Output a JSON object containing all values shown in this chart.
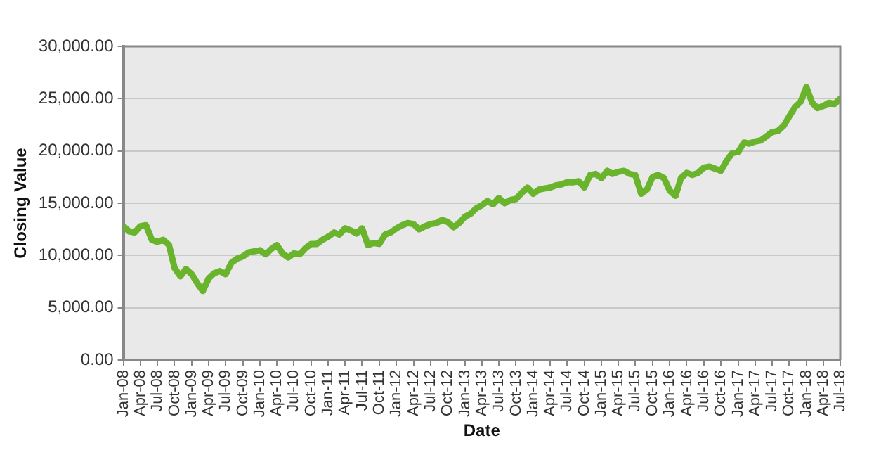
{
  "chart_data": {
    "type": "line",
    "xlabel": "Date",
    "ylabel": "Closing Value",
    "x": [
      "2008-01",
      "2008-02",
      "2008-03",
      "2008-04",
      "2008-05",
      "2008-06",
      "2008-07",
      "2008-08",
      "2008-09",
      "2008-10",
      "2008-11",
      "2008-12",
      "2009-01",
      "2009-02",
      "2009-03",
      "2009-04",
      "2009-05",
      "2009-06",
      "2009-07",
      "2009-08",
      "2009-09",
      "2009-10",
      "2009-11",
      "2009-12",
      "2010-01",
      "2010-02",
      "2010-03",
      "2010-04",
      "2010-05",
      "2010-06",
      "2010-07",
      "2010-08",
      "2010-09",
      "2010-10",
      "2010-11",
      "2010-12",
      "2011-01",
      "2011-02",
      "2011-03",
      "2011-04",
      "2011-05",
      "2011-06",
      "2011-07",
      "2011-08",
      "2011-09",
      "2011-10",
      "2011-11",
      "2011-12",
      "2012-01",
      "2012-02",
      "2012-03",
      "2012-04",
      "2012-05",
      "2012-06",
      "2012-07",
      "2012-08",
      "2012-09",
      "2012-10",
      "2012-11",
      "2012-12",
      "2013-01",
      "2013-02",
      "2013-03",
      "2013-04",
      "2013-05",
      "2013-06",
      "2013-07",
      "2013-08",
      "2013-09",
      "2013-10",
      "2013-11",
      "2013-12",
      "2014-01",
      "2014-02",
      "2014-03",
      "2014-04",
      "2014-05",
      "2014-06",
      "2014-07",
      "2014-08",
      "2014-09",
      "2014-10",
      "2014-11",
      "2014-12",
      "2015-01",
      "2015-02",
      "2015-03",
      "2015-04",
      "2015-05",
      "2015-06",
      "2015-07",
      "2015-08",
      "2015-09",
      "2015-10",
      "2015-11",
      "2015-12",
      "2016-01",
      "2016-02",
      "2016-03",
      "2016-04",
      "2016-05",
      "2016-06",
      "2016-07",
      "2016-08",
      "2016-09",
      "2016-10",
      "2016-11",
      "2016-12",
      "2017-01",
      "2017-02",
      "2017-03",
      "2017-04",
      "2017-05",
      "2017-06",
      "2017-07",
      "2017-08",
      "2017-09",
      "2017-10",
      "2017-11",
      "2017-12",
      "2018-01",
      "2018-02",
      "2018-03",
      "2018-04",
      "2018-05",
      "2018-06",
      "2018-07"
    ],
    "series": [
      {
        "color": "#6ab42d",
        "values": [
          12800,
          12300,
          12200,
          12800,
          12900,
          11500,
          11300,
          11500,
          11000,
          8800,
          8000,
          8700,
          8200,
          7300,
          6600,
          7800,
          8300,
          8500,
          8200,
          9300,
          9700,
          9900,
          10300,
          10400,
          10500,
          10100,
          10600,
          11000,
          10200,
          9800,
          10200,
          10100,
          10700,
          11100,
          11100,
          11500,
          11800,
          12200,
          12000,
          12600,
          12400,
          12100,
          12600,
          11000,
          11200,
          11100,
          12000,
          12200,
          12600,
          12900,
          13100,
          13000,
          12500,
          12800,
          13000,
          13100,
          13400,
          13200,
          12700,
          13100,
          13700,
          14000,
          14500,
          14800,
          15200,
          14900,
          15500,
          15000,
          15300,
          15400,
          16000,
          16500,
          15900,
          16300,
          16400,
          16500,
          16700,
          16800,
          17000,
          17000,
          17100,
          16500,
          17700,
          17800,
          17400,
          18100,
          17800,
          18000,
          18100,
          17800,
          17700,
          15900,
          16300,
          17500,
          17700,
          17400,
          16200,
          15700,
          17400,
          17900,
          17700,
          17900,
          18400,
          18500,
          18300,
          18100,
          19100,
          19800,
          19900,
          20800,
          20700,
          20900,
          21000,
          21400,
          21800,
          21900,
          22400,
          23300,
          24200,
          24700,
          26100,
          24600,
          24100,
          24300,
          24600,
          24500,
          25000
        ]
      }
    ],
    "xlim": [
      "2008-01",
      "2018-07"
    ],
    "xticks": [
      {
        "value": "2008-01",
        "label": "Jan-08"
      },
      {
        "value": "2008-04",
        "label": "Apr-08"
      },
      {
        "value": "2008-07",
        "label": "Jul-08"
      },
      {
        "value": "2008-10",
        "label": "Oct-08"
      },
      {
        "value": "2009-01",
        "label": "Jan-09"
      },
      {
        "value": "2009-04",
        "label": "Apr-09"
      },
      {
        "value": "2009-07",
        "label": "Jul-09"
      },
      {
        "value": "2009-10",
        "label": "Oct-09"
      },
      {
        "value": "2010-01",
        "label": "Jan-10"
      },
      {
        "value": "2010-04",
        "label": "Apr-10"
      },
      {
        "value": "2010-07",
        "label": "Jul-10"
      },
      {
        "value": "2010-10",
        "label": "Oct-10"
      },
      {
        "value": "2011-01",
        "label": "Jan-11"
      },
      {
        "value": "2011-04",
        "label": "Apr-11"
      },
      {
        "value": "2011-07",
        "label": "Jul-11"
      },
      {
        "value": "2011-10",
        "label": "Oct-11"
      },
      {
        "value": "2012-01",
        "label": "Jan-12"
      },
      {
        "value": "2012-04",
        "label": "Apr-12"
      },
      {
        "value": "2012-07",
        "label": "Jul-12"
      },
      {
        "value": "2012-10",
        "label": "Oct-12"
      },
      {
        "value": "2013-01",
        "label": "Jan-13"
      },
      {
        "value": "2013-04",
        "label": "Apr-13"
      },
      {
        "value": "2013-07",
        "label": "Jul-13"
      },
      {
        "value": "2013-10",
        "label": "Oct-13"
      },
      {
        "value": "2014-01",
        "label": "Jan-14"
      },
      {
        "value": "2014-04",
        "label": "Apr-14"
      },
      {
        "value": "2014-07",
        "label": "Jul-14"
      },
      {
        "value": "2014-10",
        "label": "Oct-14"
      },
      {
        "value": "2015-01",
        "label": "Jan-15"
      },
      {
        "value": "2015-04",
        "label": "Apr-15"
      },
      {
        "value": "2015-07",
        "label": "Jul-15"
      },
      {
        "value": "2015-10",
        "label": "Oct-15"
      },
      {
        "value": "2016-01",
        "label": "Jan-16"
      },
      {
        "value": "2016-04",
        "label": "Apr-16"
      },
      {
        "value": "2016-07",
        "label": "Jul-16"
      },
      {
        "value": "2016-10",
        "label": "Oct-16"
      },
      {
        "value": "2017-01",
        "label": "Jan-17"
      },
      {
        "value": "2017-04",
        "label": "Apr-17"
      },
      {
        "value": "2017-07",
        "label": "Jul-17"
      },
      {
        "value": "2017-10",
        "label": "Oct-17"
      },
      {
        "value": "2018-01",
        "label": "Jan-18"
      },
      {
        "value": "2018-04",
        "label": "Apr-18"
      },
      {
        "value": "2018-07",
        "label": "Jul-18"
      }
    ],
    "ylim": [
      0,
      30000
    ],
    "yticks": [
      {
        "value": 0,
        "label": "0.00"
      },
      {
        "value": 5000,
        "label": "5,000.00"
      },
      {
        "value": 10000,
        "label": "10,000.00"
      },
      {
        "value": 15000,
        "label": "15,000.00"
      },
      {
        "value": 20000,
        "label": "20,000.00"
      },
      {
        "value": 25000,
        "label": "25,000.00"
      },
      {
        "value": 30000,
        "label": "30,000.00"
      }
    ],
    "grid": "y",
    "marker": "none",
    "line_style": "solid"
  }
}
